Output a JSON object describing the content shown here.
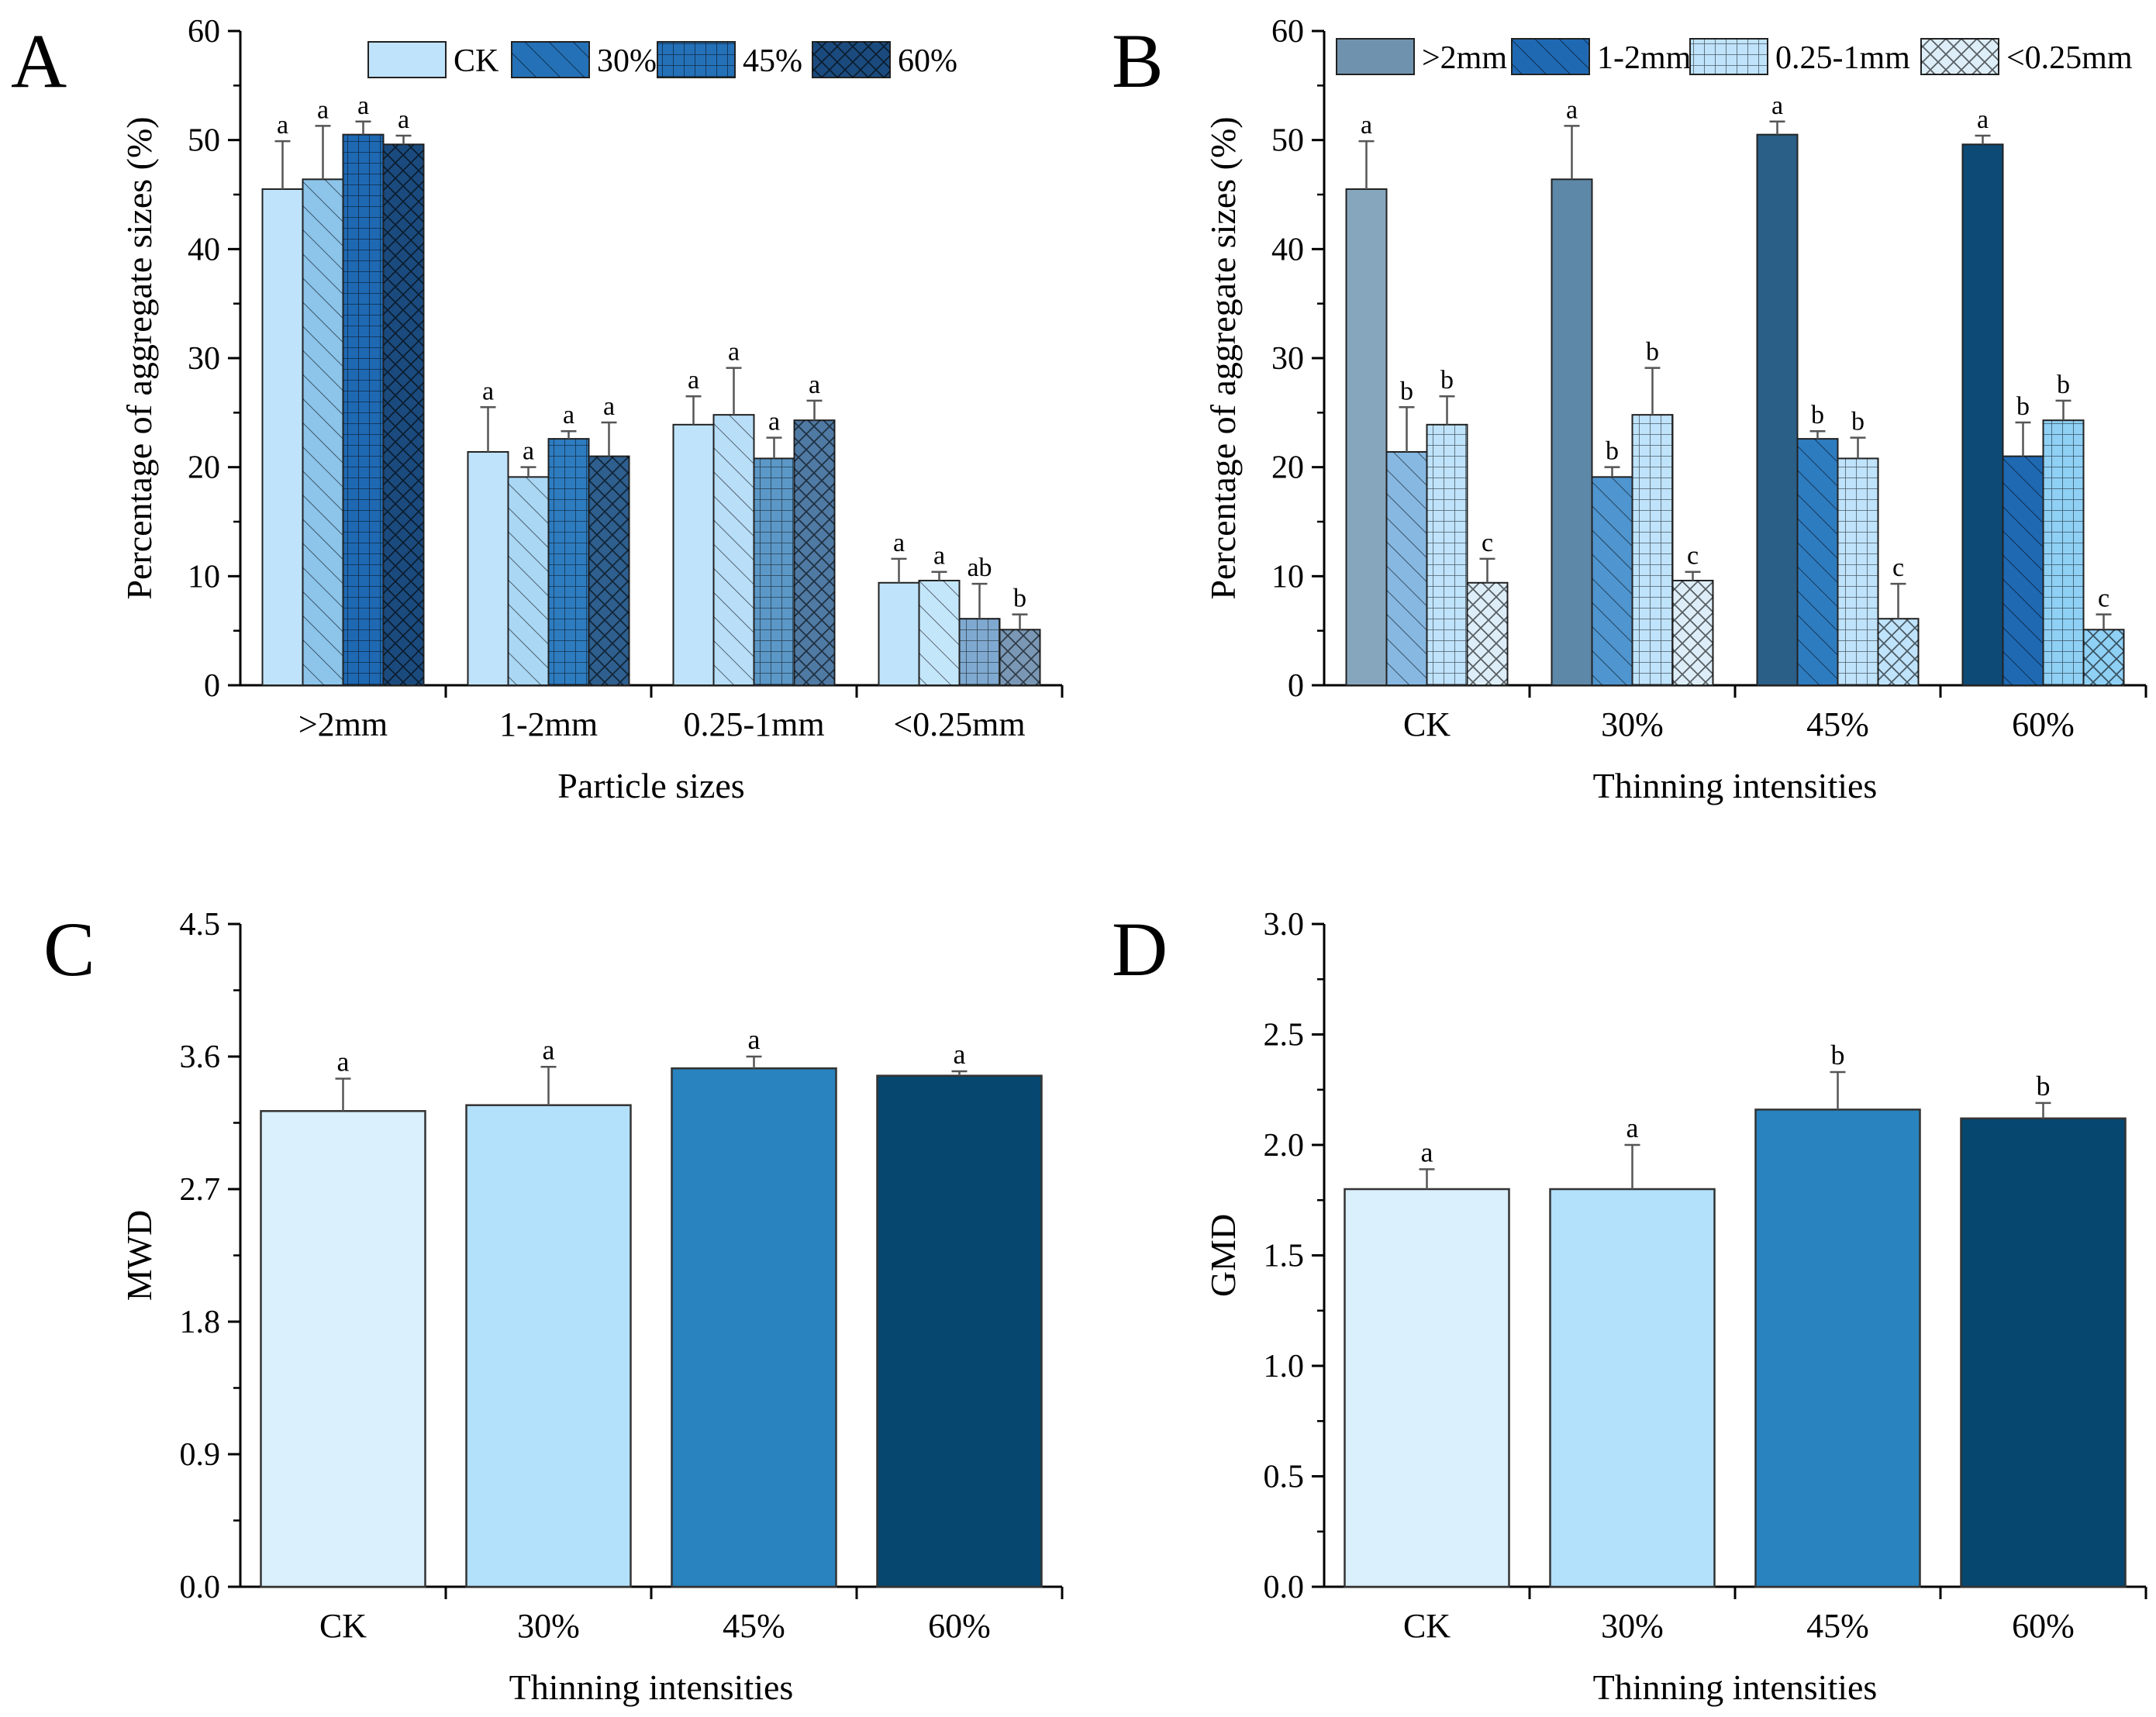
{
  "chart_data": [
    {
      "panel": "A",
      "type": "bar",
      "title": "",
      "xlabel": "Particle sizes",
      "ylabel": "Percentage of aggregate sizes (%)",
      "ylim": [
        0,
        60
      ],
      "yticks": [
        "0",
        "10",
        "20",
        "30",
        "40",
        "50",
        "60"
      ],
      "categories": [
        ">2mm",
        "1-2mm",
        "0.25-1mm",
        "<0.25mm"
      ],
      "legend_position": "top",
      "series": [
        {
          "name": "CK",
          "values": [
            45.5,
            21.4,
            23.9,
            9.4
          ],
          "errors": [
            4.4,
            4.1,
            2.6,
            2.2
          ],
          "letters": [
            "a",
            "a",
            "a",
            "a"
          ],
          "colors": [
            "#bfe3fb",
            "#bfe3fb",
            "#bfe3fb",
            "#bfe3fb"
          ],
          "pattern": "none"
        },
        {
          "name": "30%",
          "values": [
            46.4,
            19.1,
            24.8,
            9.6
          ],
          "errors": [
            4.9,
            0.9,
            4.3,
            0.8
          ],
          "letters": [
            "a",
            "a",
            "a",
            "a"
          ],
          "colors": [
            "#8cc4ea",
            "#aad7f4",
            "#b8def8",
            "#c4e6fb"
          ],
          "pattern": "diag"
        },
        {
          "name": "45%",
          "values": [
            50.5,
            22.6,
            20.8,
            6.1
          ],
          "errors": [
            1.2,
            0.7,
            1.9,
            3.2
          ],
          "letters": [
            "a",
            "a",
            "a",
            "ab"
          ],
          "colors": [
            "#1f69b3",
            "#2e7cc0",
            "#5c98c7",
            "#7fa9d0"
          ],
          "pattern": "grid"
        },
        {
          "name": "60%",
          "values": [
            49.6,
            21.0,
            24.3,
            5.1
          ],
          "errors": [
            0.8,
            3.1,
            1.8,
            1.4
          ],
          "letters": [
            "a",
            "a",
            "a",
            "b"
          ],
          "colors": [
            "#1b4b7e",
            "#2e5f8e",
            "#4f7aa4",
            "#7a98b6"
          ],
          "pattern": "cross"
        }
      ],
      "legend_colors": [
        "#bfe3fb",
        "#2471b8",
        "#2471b8",
        "#1b4b7e"
      ]
    },
    {
      "panel": "B",
      "type": "bar",
      "title": "",
      "xlabel": "Thinning intensities",
      "ylabel": "Percentage of aggregate sizes (%)",
      "ylim": [
        0,
        60
      ],
      "yticks": [
        "0",
        "10",
        "20",
        "30",
        "40",
        "50",
        "60"
      ],
      "categories": [
        "CK",
        "30%",
        "45%",
        "60%"
      ],
      "legend_position": "top",
      "series": [
        {
          "name": ">2mm",
          "values": [
            45.5,
            46.4,
            50.5,
            49.6
          ],
          "errors": [
            4.4,
            4.9,
            1.2,
            0.8
          ],
          "letters": [
            "a",
            "a",
            "a",
            "a"
          ],
          "colors": [
            "#86a6bd",
            "#5d88a8",
            "#2a5f88",
            "#0d4a76"
          ],
          "pattern": "none"
        },
        {
          "name": "1-2mm",
          "values": [
            21.4,
            19.1,
            22.6,
            21.0
          ],
          "errors": [
            4.1,
            0.9,
            0.7,
            3.1
          ],
          "letters": [
            "b",
            "b",
            "b",
            "b"
          ],
          "colors": [
            "#86b8e2",
            "#4f95cf",
            "#2e7cc0",
            "#1f69b3"
          ],
          "pattern": "diag"
        },
        {
          "name": "0.25-1mm",
          "values": [
            23.9,
            24.8,
            20.8,
            24.3
          ],
          "errors": [
            2.6,
            4.3,
            1.9,
            1.8
          ],
          "letters": [
            "b",
            "b",
            "b",
            "b"
          ],
          "colors": [
            "#bfe3fb",
            "#bfe3fb",
            "#bfe3fb",
            "#8fd0f5"
          ],
          "pattern": "grid"
        },
        {
          "name": "<0.25mm",
          "values": [
            9.4,
            9.6,
            6.1,
            5.1
          ],
          "errors": [
            2.2,
            0.8,
            3.2,
            1.4
          ],
          "letters": [
            "c",
            "c",
            "c",
            "c"
          ],
          "colors": [
            "#ddeef9",
            "#ddeef9",
            "#bfe3fb",
            "#8fd0f5"
          ],
          "pattern": "cross"
        }
      ],
      "legend_colors": [
        "#6f93ae",
        "#1f69b3",
        "#bfe3fb",
        "#ddeef9"
      ]
    },
    {
      "panel": "C",
      "type": "bar",
      "title": "",
      "xlabel": "Thinning intensities",
      "ylabel": "MWD",
      "ylim": [
        0,
        4.5
      ],
      "yticks": [
        "0.0",
        "0.9",
        "1.8",
        "2.7",
        "3.6",
        "4.5"
      ],
      "categories": [
        "CK",
        "30%",
        "45%",
        "60%"
      ],
      "values": [
        3.23,
        3.27,
        3.52,
        3.47
      ],
      "errors": [
        0.22,
        0.26,
        0.08,
        0.03
      ],
      "letters": [
        "a",
        "a",
        "a",
        "a"
      ],
      "colors": [
        "#daf0fc",
        "#b3e0fb",
        "#2883bf",
        "#05476f"
      ]
    },
    {
      "panel": "D",
      "type": "bar",
      "title": "",
      "xlabel": "Thinning intensities",
      "ylabel": "GMD",
      "ylim": [
        0,
        3.0
      ],
      "yticks": [
        "0.0",
        "0.5",
        "1.0",
        "1.5",
        "2.0",
        "2.5",
        "3.0"
      ],
      "categories": [
        "CK",
        "30%",
        "45%",
        "60%"
      ],
      "values": [
        1.8,
        1.8,
        2.16,
        2.12
      ],
      "errors": [
        0.09,
        0.2,
        0.17,
        0.07
      ],
      "letters": [
        "a",
        "a",
        "b",
        "b"
      ],
      "colors": [
        "#daf0fc",
        "#b3e0fb",
        "#2883bf",
        "#05476f"
      ]
    }
  ]
}
